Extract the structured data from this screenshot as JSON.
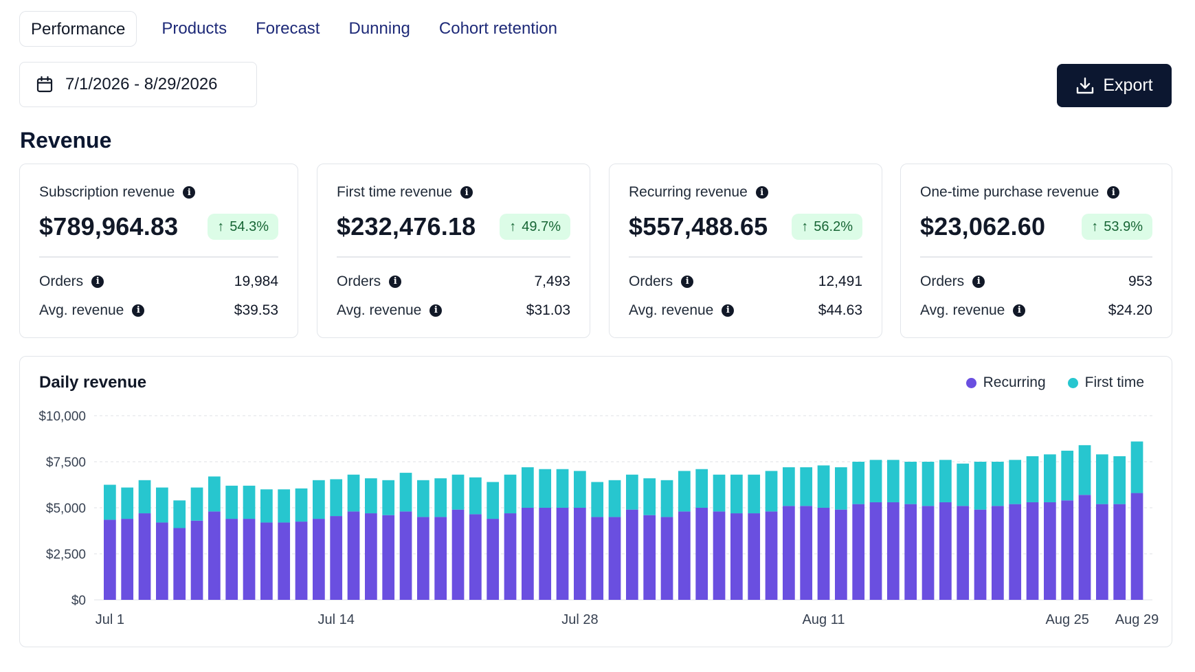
{
  "tabs": [
    {
      "label": "Performance",
      "active": true
    },
    {
      "label": "Products",
      "active": false
    },
    {
      "label": "Forecast",
      "active": false
    },
    {
      "label": "Dunning",
      "active": false
    },
    {
      "label": "Cohort retention",
      "active": false
    }
  ],
  "date_range": {
    "value": "7/1/2026 - 8/29/2026",
    "icon": "calendar-icon"
  },
  "export": {
    "label": "Export",
    "icon": "download-icon"
  },
  "section_title": "Revenue",
  "cards": [
    {
      "title": "Subscription revenue",
      "value": "$789,964.83",
      "change": "54.3%",
      "orders_label": "Orders",
      "orders": "19,984",
      "avg_label": "Avg. revenue",
      "avg": "$39.53"
    },
    {
      "title": "First time revenue",
      "value": "$232,476.18",
      "change": "49.7%",
      "orders_label": "Orders",
      "orders": "7,493",
      "avg_label": "Avg. revenue",
      "avg": "$31.03"
    },
    {
      "title": "Recurring revenue",
      "value": "$557,488.65",
      "change": "56.2%",
      "orders_label": "Orders",
      "orders": "12,491",
      "avg_label": "Avg. revenue",
      "avg": "$44.63"
    },
    {
      "title": "One-time purchase revenue",
      "value": "$23,062.60",
      "change": "53.9%",
      "orders_label": "Orders",
      "orders": "953",
      "avg_label": "Avg. revenue",
      "avg": "$24.20"
    }
  ],
  "colors": {
    "recurring": "#6a4fe0",
    "first_time": "#27c6cf",
    "badge_bg": "#dcfce7",
    "badge_text": "#166534",
    "export_bg": "#0c1730",
    "tab_text": "#1e2a78"
  },
  "chart_data": {
    "type": "bar",
    "stacked": true,
    "title": "Daily revenue",
    "x_tick_labels": [
      "Jul 1",
      "Jul 14",
      "Jul 28",
      "Aug 11",
      "Aug 25",
      "Aug 29"
    ],
    "y_tick_labels": [
      "$10,000",
      "$7,500",
      "$5,000",
      "$2,500",
      "$0"
    ],
    "ylim": [
      0,
      10000
    ],
    "grid": true,
    "legend_position": "top-right",
    "categories": [
      "Jul 1",
      "Jul 2",
      "Jul 3",
      "Jul 4",
      "Jul 5",
      "Jul 6",
      "Jul 7",
      "Jul 8",
      "Jul 9",
      "Jul 10",
      "Jul 11",
      "Jul 12",
      "Jul 13",
      "Jul 14",
      "Jul 15",
      "Jul 16",
      "Jul 17",
      "Jul 18",
      "Jul 19",
      "Jul 20",
      "Jul 21",
      "Jul 22",
      "Jul 23",
      "Jul 24",
      "Jul 25",
      "Jul 26",
      "Jul 27",
      "Jul 28",
      "Jul 29",
      "Jul 30",
      "Jul 31",
      "Aug 1",
      "Aug 2",
      "Aug 3",
      "Aug 4",
      "Aug 5",
      "Aug 6",
      "Aug 7",
      "Aug 8",
      "Aug 9",
      "Aug 10",
      "Aug 11",
      "Aug 12",
      "Aug 13",
      "Aug 14",
      "Aug 15",
      "Aug 16",
      "Aug 17",
      "Aug 18",
      "Aug 19",
      "Aug 20",
      "Aug 21",
      "Aug 22",
      "Aug 23",
      "Aug 24",
      "Aug 25",
      "Aug 26",
      "Aug 27",
      "Aug 28",
      "Aug 29"
    ],
    "series": [
      {
        "name": "Recurring",
        "color": "#6a4fe0",
        "values": [
          4350,
          4400,
          4700,
          4200,
          3900,
          4300,
          4800,
          4400,
          4400,
          4200,
          4200,
          4250,
          4400,
          4550,
          4800,
          4700,
          4600,
          4800,
          4500,
          4500,
          4900,
          4650,
          4400,
          4700,
          5000,
          5000,
          5000,
          5000,
          4500,
          4500,
          4900,
          4600,
          4500,
          4800,
          5000,
          4800,
          4700,
          4700,
          4800,
          5100,
          5100,
          5000,
          4900,
          5200,
          5300,
          5300,
          5200,
          5100,
          5300,
          5100,
          4900,
          5100,
          5200,
          5300,
          5300,
          5400,
          5700,
          5200,
          5200,
          5800
        ]
      },
      {
        "name": "First time",
        "color": "#27c6cf",
        "values": [
          1900,
          1700,
          1800,
          1900,
          1500,
          1800,
          1900,
          1800,
          1800,
          1800,
          1800,
          1800,
          2100,
          2000,
          2000,
          1900,
          1900,
          2100,
          2000,
          2100,
          1900,
          2000,
          2000,
          2100,
          2200,
          2100,
          2100,
          2000,
          1900,
          2000,
          1900,
          2000,
          2000,
          2200,
          2100,
          2000,
          2100,
          2100,
          2200,
          2100,
          2100,
          2300,
          2300,
          2300,
          2300,
          2300,
          2300,
          2400,
          2300,
          2300,
          2600,
          2400,
          2400,
          2500,
          2600,
          2700,
          2700,
          2700,
          2600,
          2800
        ]
      }
    ]
  }
}
